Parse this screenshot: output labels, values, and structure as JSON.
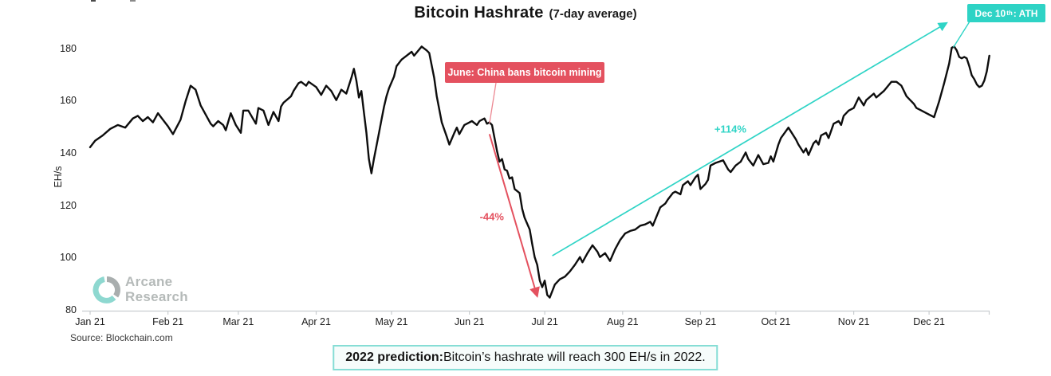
{
  "title": {
    "main": "Bitcoin Hashrate",
    "sub": "(7-day average)"
  },
  "y_axis": {
    "label": "EH/s",
    "ticks": [
      80,
      100,
      120,
      140,
      160,
      180
    ]
  },
  "x_axis": {
    "ticks": [
      "Jan 21",
      "Feb 21",
      "Mar 21",
      "Apr 21",
      "May 21",
      "Jun 21",
      "Jul 21",
      "Aug 21",
      "Sep 21",
      "Oct 21",
      "Nov 21",
      "Dec 21"
    ]
  },
  "chart_data": {
    "type": "line",
    "title": "Bitcoin Hashrate (7-day average)",
    "xlabel": "",
    "ylabel": "EH/s",
    "ylim": [
      80,
      185
    ],
    "x_range": [
      "Jan 1 2021",
      "Dec 25 2021"
    ],
    "grid": false,
    "series": [
      {
        "name": "Bitcoin hashrate 7-day average (EH/s)",
        "color": "#0d0d0d",
        "points": [
          [
            "Jan 1",
            142.5
          ],
          [
            "Jan 3",
            145
          ],
          [
            "Jan 6",
            147
          ],
          [
            "Jan 9",
            149.5
          ],
          [
            "Jan 12",
            151
          ],
          [
            "Jan 15",
            150
          ],
          [
            "Jan 18",
            153.5
          ],
          [
            "Jan 20",
            154.5
          ],
          [
            "Jan 22",
            152.5
          ],
          [
            "Jan 24",
            154
          ],
          [
            "Jan 26",
            152
          ],
          [
            "Jan 28",
            155.5
          ],
          [
            "Jan 30",
            153
          ],
          [
            "Feb 1",
            150.5
          ],
          [
            "Feb 3",
            147.5
          ],
          [
            "Feb 6",
            153
          ],
          [
            "Feb 8",
            160
          ],
          [
            "Feb 10",
            166
          ],
          [
            "Feb 12",
            164.5
          ],
          [
            "Feb 14",
            158.5
          ],
          [
            "Feb 16",
            155
          ],
          [
            "Feb 18",
            151.5
          ],
          [
            "Feb 19",
            150.5
          ],
          [
            "Feb 21",
            152.5
          ],
          [
            "Feb 23",
            151
          ],
          [
            "Feb 24",
            149
          ],
          [
            "Feb 26",
            155.5
          ],
          [
            "Feb 28",
            151
          ],
          [
            "Mar 2",
            148
          ],
          [
            "Mar 3",
            156.5
          ],
          [
            "Mar 5",
            156.5
          ],
          [
            "Mar 8",
            151.5
          ],
          [
            "Mar 9",
            157.5
          ],
          [
            "Mar 11",
            156.5
          ],
          [
            "Mar 13",
            151
          ],
          [
            "Mar 15",
            156
          ],
          [
            "Mar 17",
            152.5
          ],
          [
            "Mar 18",
            158
          ],
          [
            "Mar 19",
            159.5
          ],
          [
            "Mar 22",
            162
          ],
          [
            "Mar 23",
            164
          ],
          [
            "Mar 25",
            167
          ],
          [
            "Mar 26",
            167.5
          ],
          [
            "Mar 28",
            166
          ],
          [
            "Mar 29",
            167.5
          ],
          [
            "Apr 1",
            165.5
          ],
          [
            "Apr 3",
            162.5
          ],
          [
            "Apr 5",
            166
          ],
          [
            "Apr 7",
            164
          ],
          [
            "Apr 9",
            160.5
          ],
          [
            "Apr 11",
            164.5
          ],
          [
            "Apr 13",
            163
          ],
          [
            "Apr 15",
            169
          ],
          [
            "Apr 16",
            172.5
          ],
          [
            "Apr 17",
            168
          ],
          [
            "Apr 18",
            161.5
          ],
          [
            "Apr 19",
            164
          ],
          [
            "Apr 20",
            156
          ],
          [
            "Apr 21",
            148
          ],
          [
            "Apr 22",
            138
          ],
          [
            "Apr 23",
            132.5
          ],
          [
            "Apr 24",
            138
          ],
          [
            "Apr 25",
            143
          ],
          [
            "Apr 26",
            148
          ],
          [
            "Apr 27",
            153
          ],
          [
            "Apr 28",
            158
          ],
          [
            "Apr 29",
            162
          ],
          [
            "Apr 30",
            165
          ],
          [
            "May 2",
            169.5
          ],
          [
            "May 3",
            173.5
          ],
          [
            "May 5",
            176
          ],
          [
            "May 7",
            177.5
          ],
          [
            "May 9",
            179
          ],
          [
            "May 10",
            177.5
          ],
          [
            "May 13",
            181
          ],
          [
            "May 15",
            179.5
          ],
          [
            "May 16",
            178.5
          ],
          [
            "May 18",
            169
          ],
          [
            "May 19",
            162
          ],
          [
            "May 21",
            152
          ],
          [
            "May 23",
            146.5
          ],
          [
            "May 24",
            143.5
          ],
          [
            "May 26",
            148
          ],
          [
            "May 27",
            150
          ],
          [
            "May 28",
            147.5
          ],
          [
            "May 30",
            151
          ],
          [
            "May 31",
            151.5
          ],
          [
            "Jun 2",
            152.5
          ],
          [
            "Jun 4",
            151
          ],
          [
            "Jun 5",
            152.5
          ],
          [
            "Jun 7",
            153.5
          ],
          [
            "Jun 8",
            151.5
          ],
          [
            "Jun 9",
            152
          ],
          [
            "Jun 10",
            151
          ],
          [
            "Jun 12",
            141
          ],
          [
            "Jun 13",
            137
          ],
          [
            "Jun 14",
            138
          ],
          [
            "Jun 15",
            134
          ],
          [
            "Jun 16",
            133.5
          ],
          [
            "Jun 17",
            130.5
          ],
          [
            "Jun 18",
            131
          ],
          [
            "Jun 19",
            126.5
          ],
          [
            "Jun 21",
            125
          ],
          [
            "Jun 22",
            119
          ],
          [
            "Jun 23",
            115.5
          ],
          [
            "Jun 25",
            111
          ],
          [
            "Jun 26",
            105.5
          ],
          [
            "Jun 27",
            100.5
          ],
          [
            "Jun 28",
            97.5
          ],
          [
            "Jun 29",
            91.5
          ],
          [
            "Jun 30",
            89
          ],
          [
            "Jul 1",
            91.5
          ],
          [
            "Jul 2",
            86
          ],
          [
            "Jul 3",
            85
          ],
          [
            "Jul 4",
            87.5
          ],
          [
            "Jul 5",
            90
          ],
          [
            "Jul 7",
            92
          ],
          [
            "Jul 9",
            93
          ],
          [
            "Jul 11",
            95
          ],
          [
            "Jul 13",
            97.5
          ],
          [
            "Jul 15",
            100.5
          ],
          [
            "Jul 16",
            98.5
          ],
          [
            "Jul 18",
            102
          ],
          [
            "Jul 20",
            105
          ],
          [
            "Jul 22",
            102.5
          ],
          [
            "Jul 23",
            100.5
          ],
          [
            "Jul 25",
            102
          ],
          [
            "Jul 27",
            99
          ],
          [
            "Jul 29",
            103.5
          ],
          [
            "Jul 31",
            107
          ],
          [
            "Aug 2",
            109.5
          ],
          [
            "Aug 4",
            110.5
          ],
          [
            "Aug 6",
            111
          ],
          [
            "Aug 8",
            112.5
          ],
          [
            "Aug 10",
            113
          ],
          [
            "Aug 12",
            114
          ],
          [
            "Aug 13",
            112.5
          ],
          [
            "Aug 16",
            119.5
          ],
          [
            "Aug 18",
            121
          ],
          [
            "Aug 19",
            122.5
          ],
          [
            "Aug 21",
            125
          ],
          [
            "Aug 22",
            125.5
          ],
          [
            "Aug 24",
            124.5
          ],
          [
            "Aug 25",
            128
          ],
          [
            "Aug 27",
            129.5
          ],
          [
            "Aug 28",
            128
          ],
          [
            "Aug 30",
            131
          ],
          [
            "Aug 31",
            132
          ],
          [
            "Sep 1",
            126.5
          ],
          [
            "Sep 3",
            128.5
          ],
          [
            "Sep 4",
            130
          ],
          [
            "Sep 5",
            135.5
          ],
          [
            "Sep 7",
            136.5
          ],
          [
            "Sep 10",
            137.5
          ],
          [
            "Sep 12",
            134
          ],
          [
            "Sep 13",
            133
          ],
          [
            "Sep 15",
            135.5
          ],
          [
            "Sep 17",
            137
          ],
          [
            "Sep 19",
            140.5
          ],
          [
            "Sep 20",
            138
          ],
          [
            "Sep 22",
            135.5
          ],
          [
            "Sep 24",
            139.5
          ],
          [
            "Sep 26",
            136
          ],
          [
            "Sep 28",
            136.5
          ],
          [
            "Sep 29",
            139
          ],
          [
            "Sep 30",
            137
          ],
          [
            "Oct 2",
            143.5
          ],
          [
            "Oct 3",
            146
          ],
          [
            "Oct 6",
            150
          ],
          [
            "Oct 9",
            145.5
          ],
          [
            "Oct 10",
            143.5
          ],
          [
            "Oct 12",
            140.5
          ],
          [
            "Oct 13",
            142
          ],
          [
            "Oct 14",
            139.5
          ],
          [
            "Oct 16",
            144
          ],
          [
            "Oct 17",
            145
          ],
          [
            "Oct 18",
            143.5
          ],
          [
            "Oct 19",
            147
          ],
          [
            "Oct 21",
            148
          ],
          [
            "Oct 22",
            146
          ],
          [
            "Oct 24",
            151.5
          ],
          [
            "Oct 26",
            152.5
          ],
          [
            "Oct 27",
            151
          ],
          [
            "Oct 28",
            154.5
          ],
          [
            "Oct 30",
            156.5
          ],
          [
            "Nov 1",
            157.5
          ],
          [
            "Nov 3",
            161.5
          ],
          [
            "Nov 5",
            158.5
          ],
          [
            "Nov 6",
            160.5
          ],
          [
            "Nov 9",
            163
          ],
          [
            "Nov 10",
            161.5
          ],
          [
            "Nov 13",
            164
          ],
          [
            "Nov 16",
            167.5
          ],
          [
            "Nov 18",
            167.5
          ],
          [
            "Nov 20",
            166
          ],
          [
            "Nov 22",
            162
          ],
          [
            "Nov 25",
            159
          ],
          [
            "Nov 26",
            157.5
          ],
          [
            "Nov 28",
            156.5
          ],
          [
            "Dec 1",
            155
          ],
          [
            "Dec 3",
            154
          ],
          [
            "Dec 5",
            160
          ],
          [
            "Dec 7",
            167
          ],
          [
            "Dec 9",
            174.5
          ],
          [
            "Dec 10",
            180.5
          ],
          [
            "Dec 11",
            181
          ],
          [
            "Dec 12",
            179.5
          ],
          [
            "Dec 13",
            177
          ],
          [
            "Dec 14",
            176.5
          ],
          [
            "Dec 15",
            177
          ],
          [
            "Dec 16",
            176.5
          ],
          [
            "Dec 17",
            173.5
          ],
          [
            "Dec 18",
            170
          ],
          [
            "Dec 19",
            168.5
          ],
          [
            "Dec 20",
            166.5
          ],
          [
            "Dec 21",
            165.5
          ],
          [
            "Dec 22",
            166
          ],
          [
            "Dec 23",
            168
          ],
          [
            "Dec 24",
            171.5
          ],
          [
            "Dec 25",
            177.5
          ]
        ]
      }
    ],
    "annotations": {
      "china_ban": {
        "label": "June: China bans bitcoin mining",
        "box_color": "#e4515f",
        "text_color": "#ffffff",
        "points_to": {
          "date": "Jun 9",
          "value": 151
        }
      },
      "drop_arrow": {
        "label": "-44%",
        "color": "#e4515f",
        "from": {
          "date": "Jun 9",
          "value": 147.5
        },
        "to": {
          "date": "Jun 28",
          "value": 85.5
        }
      },
      "rise_arrow": {
        "label": "+114%",
        "color": "#2fd4c6",
        "from": {
          "date": "Jul 4",
          "value": 101
        },
        "to": {
          "date": "Dec 8",
          "value": 190
        }
      },
      "ath": {
        "prefix": "Dec 10",
        "sup": "th",
        "suffix": ": ATH",
        "box_color": "#2ed3c5",
        "text_color": "#ffffff",
        "points_to": {
          "date": "Dec 11",
          "value": 181
        }
      }
    }
  },
  "watermark": {
    "line1": "Arcane",
    "line2": "Research"
  },
  "source": "Source: Blockchain.com",
  "prediction": {
    "bold": "2022 prediction:",
    "text": " Bitcoin’s hashrate will reach 300 EH/s in 2022."
  },
  "colors": {
    "line": "#0d0d0d",
    "red": "#e4515f",
    "cyan": "#2fd4c6",
    "axis": "#c9cdd0",
    "prediction_border": "#86ddd5",
    "prediction_bg": "#f6fcfb",
    "watermark_text": "#b5bab9",
    "watermark_teal": "#8ed8d0",
    "watermark_gray": "#a9aeae"
  }
}
